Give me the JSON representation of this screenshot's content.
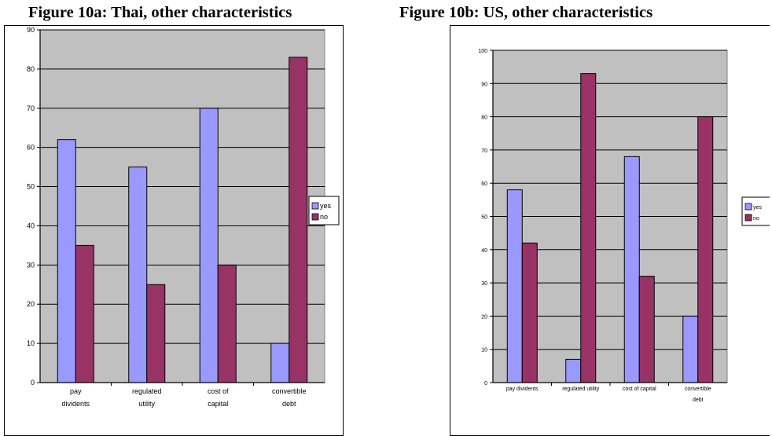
{
  "figures": [
    {
      "title": "Figure 10a: Thai, other characteristics"
    },
    {
      "title": "Figure 10b: US, other characteristics"
    }
  ],
  "chart_data": [
    {
      "type": "bar",
      "title": "Figure 10a: Thai, other characteristics",
      "categories": [
        [
          "pay",
          "dividents"
        ],
        [
          "regulated",
          "utility"
        ],
        [
          "cost of",
          "capital"
        ],
        [
          "convertible",
          "debt"
        ]
      ],
      "series": [
        {
          "name": "yes",
          "values": [
            62,
            55,
            70,
            10
          ],
          "color": "#9999ff"
        },
        {
          "name": "no",
          "values": [
            35,
            25,
            30,
            83
          ],
          "color": "#993366"
        }
      ],
      "ylim": [
        0,
        90
      ],
      "yticks": [
        "0",
        "10",
        "20",
        "30",
        "40",
        "50",
        "60",
        "70",
        "80",
        "90"
      ],
      "grid": true,
      "plot_background": "#c0c0c0",
      "legend_position": "right"
    },
    {
      "type": "bar",
      "title": "Figure 10b: US, other characteristics",
      "categories": [
        [
          "pay dividents"
        ],
        [
          "regulated utility"
        ],
        [
          "cost of capital"
        ],
        [
          "convertible",
          "debt"
        ]
      ],
      "series": [
        {
          "name": "yes",
          "values": [
            58,
            7,
            68,
            20
          ],
          "color": "#9999ff"
        },
        {
          "name": "no",
          "values": [
            42,
            93,
            32,
            80
          ],
          "color": "#993366"
        }
      ],
      "ylim": [
        0,
        100
      ],
      "yticks": [
        "0",
        "10",
        "20",
        "30",
        "40",
        "50",
        "60",
        "70",
        "80",
        "90",
        "100"
      ],
      "grid": true,
      "plot_background": "#c0c0c0",
      "legend_position": "right"
    }
  ]
}
